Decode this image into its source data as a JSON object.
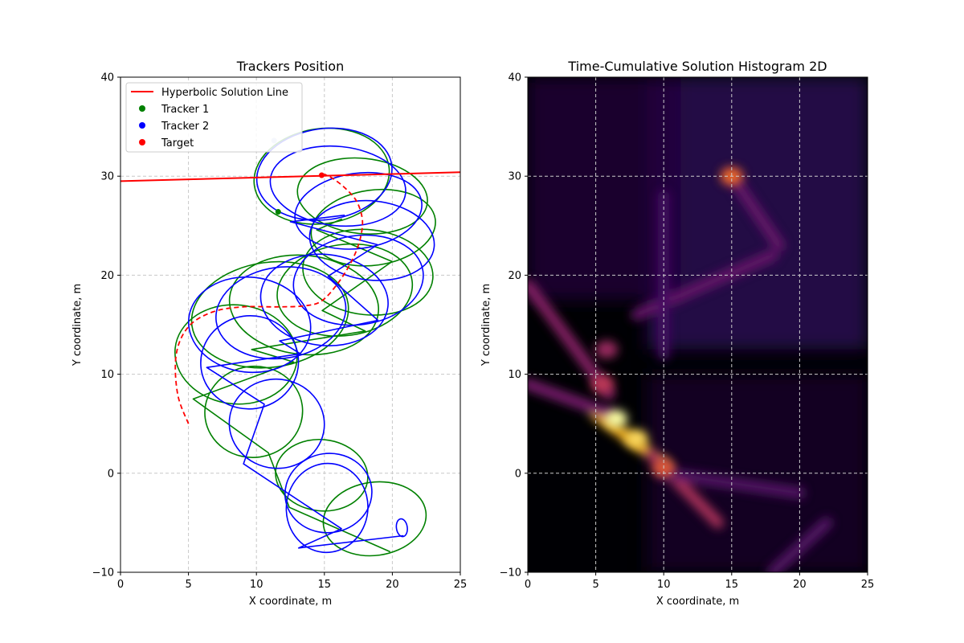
{
  "chart_data": [
    {
      "type": "line",
      "title": "Trackers Position",
      "xlabel": "X coordinate, m",
      "ylabel": "Y coordinate, m",
      "xlim": [
        0,
        25
      ],
      "ylim": [
        -10,
        40
      ],
      "xticks": [
        "0",
        "5",
        "10",
        "15",
        "20",
        "25"
      ],
      "yticks": [
        "−10",
        "0",
        "10",
        "20",
        "30",
        "40"
      ],
      "grid": true,
      "legend_position": "upper-left",
      "colors": {
        "solution": "#ff0000",
        "tracker1": "#008000",
        "tracker2": "#0000ff",
        "target": "#ff0000"
      },
      "legend": [
        "Hyperbolic Solution Line",
        "Tracker 1",
        "Tracker 2",
        "Target"
      ],
      "series": [
        {
          "name": "Hyperbolic Solution Line",
          "x": [
            0,
            25
          ],
          "y": [
            29.5,
            30.4
          ]
        },
        {
          "name": "Target",
          "x": [
            5,
            4.2,
            4.1,
            5.0,
            6.8,
            9.0,
            11.5,
            13.5,
            14.8,
            16.0,
            17.0,
            17.6,
            17.8,
            17.4,
            16.6,
            15.7,
            15.0
          ],
          "y": [
            5,
            8,
            12,
            14.8,
            16.3,
            16.8,
            16.8,
            16.9,
            17.4,
            19.2,
            21.4,
            23.5,
            25.5,
            27.4,
            28.7,
            29.7,
            30.2
          ]
        }
      ],
      "tracker1_loops": [
        {
          "cx": 18.7,
          "cy": -4.6,
          "rx": 3.8,
          "ry": 3.7
        },
        {
          "cx": 14.8,
          "cy": -0.2,
          "rx": 3.4,
          "ry": 3.6
        },
        {
          "cx": 9.8,
          "cy": 6.2,
          "rx": 3.6,
          "ry": 4.6
        },
        {
          "cx": 8.5,
          "cy": 12.0,
          "rx": 4.5,
          "ry": 5.0
        },
        {
          "cx": 11.0,
          "cy": 16.0,
          "rx": 5.8,
          "ry": 5.3
        },
        {
          "cx": 13.5,
          "cy": 17.0,
          "rx": 5.5,
          "ry": 5.0
        },
        {
          "cx": 16.5,
          "cy": 18.5,
          "rx": 5.0,
          "ry": 4.6
        },
        {
          "cx": 18.2,
          "cy": 20.3,
          "rx": 4.8,
          "ry": 4.3
        },
        {
          "cx": 18.6,
          "cy": 24.8,
          "rx": 4.6,
          "ry": 3.8
        },
        {
          "cx": 17.8,
          "cy": 28.0,
          "rx": 4.8,
          "ry": 3.8
        },
        {
          "cx": 14.8,
          "cy": 30.0,
          "rx": 5.0,
          "ry": 4.8
        }
      ],
      "tracker2_loops": [
        {
          "cx": 20.7,
          "cy": -5.5,
          "rx": 0.4,
          "ry": 0.9
        },
        {
          "cx": 15.2,
          "cy": -3.5,
          "rx": 3.0,
          "ry": 4.5
        },
        {
          "cx": 15.3,
          "cy": -2.0,
          "rx": 3.2,
          "ry": 4.0
        },
        {
          "cx": 11.5,
          "cy": 5.0,
          "rx": 3.5,
          "ry": 4.5
        },
        {
          "cx": 9.5,
          "cy": 11.2,
          "rx": 3.6,
          "ry": 4.7
        },
        {
          "cx": 9.5,
          "cy": 15.0,
          "rx": 4.5,
          "ry": 4.8
        },
        {
          "cx": 11.8,
          "cy": 16.2,
          "rx": 4.8,
          "ry": 4.6
        },
        {
          "cx": 15.0,
          "cy": 17.5,
          "rx": 4.7,
          "ry": 4.6
        },
        {
          "cx": 17.5,
          "cy": 19.5,
          "rx": 4.8,
          "ry": 4.5
        },
        {
          "cx": 18.5,
          "cy": 23.5,
          "rx": 4.6,
          "ry": 4.0
        },
        {
          "cx": 17.5,
          "cy": 26.5,
          "rx": 4.7,
          "ry": 3.8
        },
        {
          "cx": 16.0,
          "cy": 29.0,
          "rx": 5.0,
          "ry": 4.0
        },
        {
          "cx": 15.0,
          "cy": 30.2,
          "rx": 5.0,
          "ry": 4.6
        }
      ],
      "markers": [
        {
          "name": "Tracker 1",
          "x": 11.6,
          "y": 26.4
        },
        {
          "name": "Tracker 2",
          "x": 11.3,
          "y": 33.6
        },
        {
          "name": "Target",
          "x": 14.8,
          "y": 30.1
        }
      ]
    },
    {
      "type": "heatmap",
      "title": "Time-Cumulative Solution Histogram 2D",
      "xlabel": "X coordinate, m",
      "ylabel": "Y coordinate, m",
      "xlim": [
        0,
        25
      ],
      "ylim": [
        -10,
        40
      ],
      "xticks": [
        "0",
        "5",
        "10",
        "15",
        "20",
        "25"
      ],
      "yticks": [
        "−10",
        "0",
        "10",
        "20",
        "30",
        "40"
      ],
      "grid": true,
      "colormap": "inferno",
      "hotspots": [
        {
          "x": 6.5,
          "y": 5.5,
          "intensity": 1.0
        },
        {
          "x": 8.0,
          "y": 3.5,
          "intensity": 0.95
        },
        {
          "x": 15.0,
          "y": 30.0,
          "intensity": 0.75
        },
        {
          "x": 10.0,
          "y": 0.5,
          "intensity": 0.7
        },
        {
          "x": 5.5,
          "y": 9.0,
          "intensity": 0.6
        },
        {
          "x": 5.8,
          "y": 12.5,
          "intensity": 0.5
        }
      ],
      "ridges": [
        {
          "x1": 5,
          "y1": 6,
          "x2": 10,
          "y2": 1,
          "intensity": 0.9
        },
        {
          "x1": 0,
          "y1": 19,
          "x2": 6,
          "y2": 8,
          "intensity": 0.45
        },
        {
          "x1": 9,
          "y1": 2,
          "x2": 14,
          "y2": -5,
          "intensity": 0.55
        },
        {
          "x1": 8,
          "y1": 16,
          "x2": 18,
          "y2": 22,
          "intensity": 0.35
        },
        {
          "x1": 15,
          "y1": 30,
          "x2": 18.5,
          "y2": 23,
          "intensity": 0.35
        },
        {
          "x1": 10,
          "y1": 12,
          "x2": 10,
          "y2": 28,
          "intensity": 0.25
        },
        {
          "x1": 0,
          "y1": 9,
          "x2": 6,
          "y2": 6,
          "intensity": 0.4
        },
        {
          "x1": 10,
          "y1": 0,
          "x2": 20,
          "y2": -2,
          "intensity": 0.3
        },
        {
          "x1": 18,
          "y1": -10,
          "x2": 22,
          "y2": -5,
          "intensity": 0.3
        }
      ]
    }
  ]
}
